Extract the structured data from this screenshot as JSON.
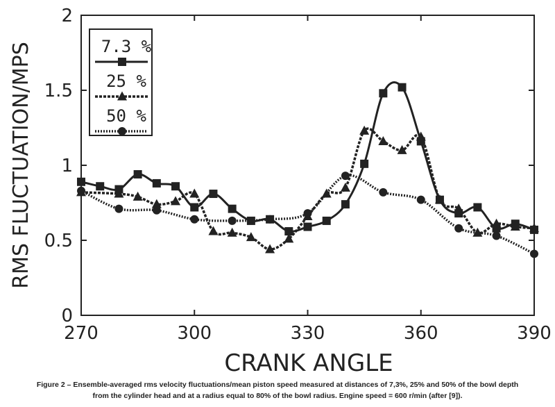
{
  "chart_data": {
    "type": "line",
    "xlabel": "CRANK ANGLE",
    "ylabel": "RMS FLUCTUATION/MPS",
    "xlim": [
      270,
      390
    ],
    "ylim": [
      0,
      2
    ],
    "xticks": [
      "270",
      "300",
      "330",
      "360",
      "390"
    ],
    "yticks": [
      "0",
      "0.5",
      "1",
      "1.5",
      "2"
    ],
    "legend_position": "top-left",
    "series": [
      {
        "name": "7.3 %",
        "marker": "square",
        "line": "solid",
        "x": [
          270,
          275,
          280,
          285,
          290,
          295,
          300,
          305,
          310,
          315,
          320,
          325,
          330,
          335,
          340,
          345,
          350,
          355,
          360,
          365,
          370,
          375,
          380,
          385,
          390
        ],
        "y": [
          0.89,
          0.86,
          0.84,
          0.94,
          0.88,
          0.86,
          0.72,
          0.81,
          0.71,
          0.63,
          0.64,
          0.56,
          0.59,
          0.63,
          0.74,
          1.01,
          1.48,
          1.52,
          1.16,
          0.77,
          0.68,
          0.72,
          0.58,
          0.61,
          0.57
        ]
      },
      {
        "name": "25 %",
        "marker": "triangle",
        "line": "dashed",
        "x": [
          270,
          280,
          285,
          290,
          295,
          300,
          305,
          310,
          315,
          320,
          325,
          330,
          335,
          340,
          345,
          350,
          355,
          360,
          365,
          370,
          375,
          380,
          385,
          390
        ],
        "y": [
          0.82,
          0.81,
          0.79,
          0.74,
          0.76,
          0.81,
          0.56,
          0.55,
          0.52,
          0.44,
          0.51,
          0.66,
          0.81,
          0.85,
          1.23,
          1.16,
          1.1,
          1.19,
          0.77,
          0.71,
          0.55,
          0.61,
          0.59,
          0.58
        ]
      },
      {
        "name": "50 %",
        "marker": "circle",
        "line": "dotted",
        "x": [
          270,
          280,
          290,
          300,
          310,
          320,
          330,
          340,
          350,
          360,
          370,
          380,
          390
        ],
        "y": [
          0.83,
          0.71,
          0.7,
          0.64,
          0.63,
          0.64,
          0.68,
          0.93,
          0.82,
          0.77,
          0.58,
          0.53,
          0.41
        ]
      }
    ]
  },
  "caption_line1": "Figure 2 – Ensemble-averaged rms velocity fluctuations/mean piston speed measured at distances of 7,3%, 25% and 50% of the bowl depth",
  "caption_line2": "from the cylinder head and at a radius equal to 80% of the bowl radius. Engine speed = 600 r/min (after [9])."
}
